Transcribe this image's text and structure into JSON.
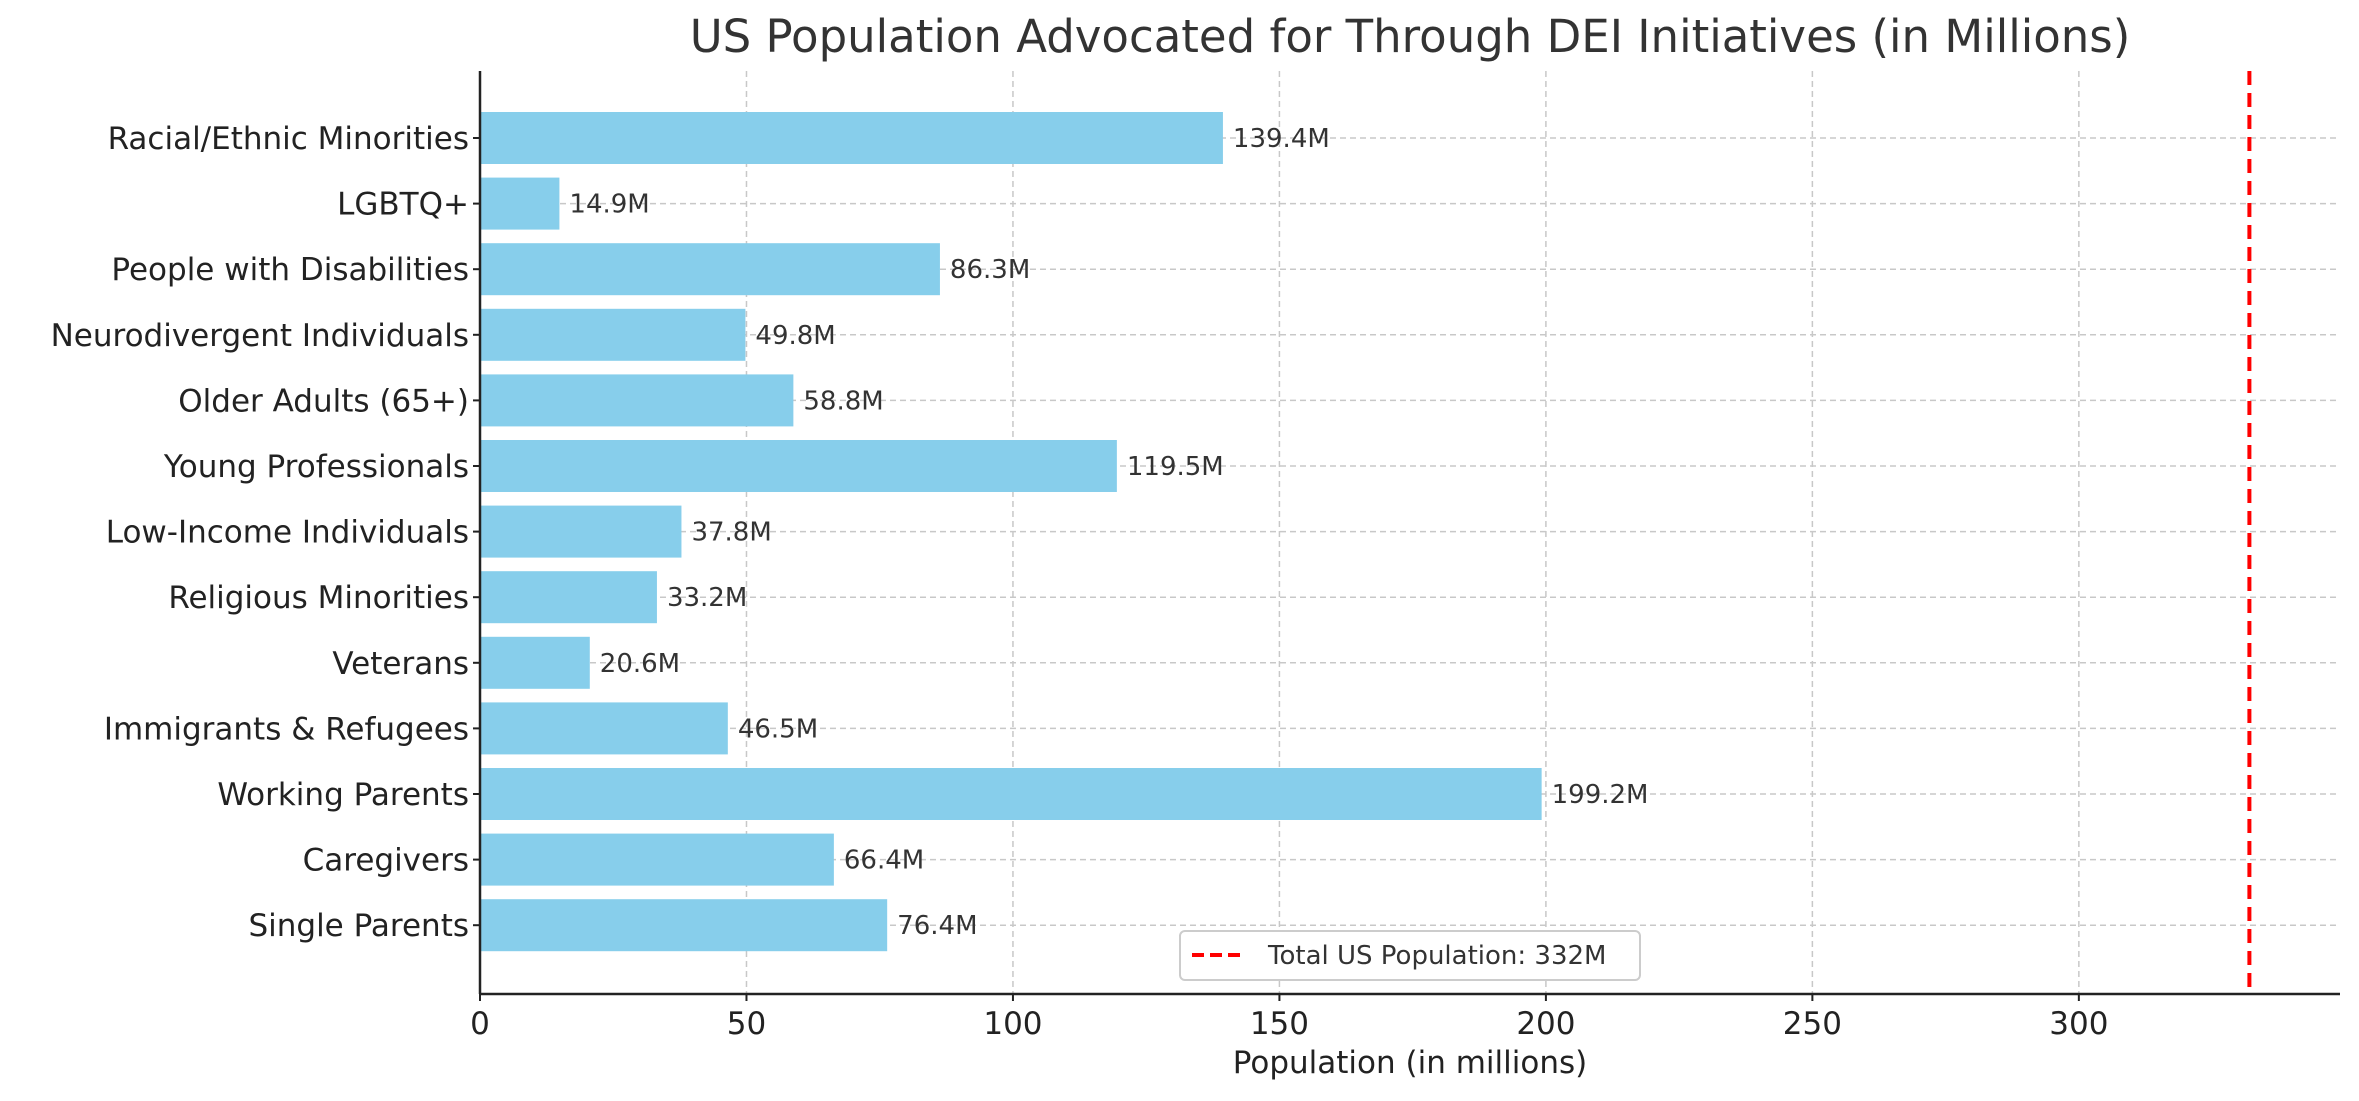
{
  "chart_data": {
    "type": "bar",
    "orientation": "horizontal",
    "title": "US Population Advocated for Through DEI Initiatives (in Millions)",
    "xlabel": "Population (in millions)",
    "ylabel": "",
    "xlim": [
      0,
      349
    ],
    "xticks": [
      0,
      50,
      100,
      150,
      200,
      250,
      300
    ],
    "grid": true,
    "categories": [
      "Racial/Ethnic Minorities",
      "LGBTQ+",
      "People with Disabilities",
      "Neurodivergent Individuals",
      "Older Adults (65+)",
      "Young Professionals",
      "Low-Income Individuals",
      "Religious Minorities",
      "Veterans",
      "Immigrants & Refugees",
      "Working Parents",
      "Caregivers",
      "Single Parents"
    ],
    "values": [
      139.4,
      14.9,
      86.3,
      49.8,
      58.8,
      119.5,
      37.8,
      33.2,
      20.6,
      46.5,
      199.2,
      66.4,
      76.4
    ],
    "labels": [
      "139.4M",
      "14.9M",
      "86.3M",
      "49.8M",
      "58.8M",
      "119.5M",
      "37.8M",
      "33.2M",
      "20.6M",
      "46.5M",
      "199.2M",
      "66.4M",
      "76.4M"
    ],
    "bar_color": "#87ceeb",
    "reference_line": {
      "value": 332,
      "label": "Total US Population: 332M",
      "color": "#ff0000",
      "style": "dashed"
    },
    "legend_placement": "bottom-center"
  }
}
